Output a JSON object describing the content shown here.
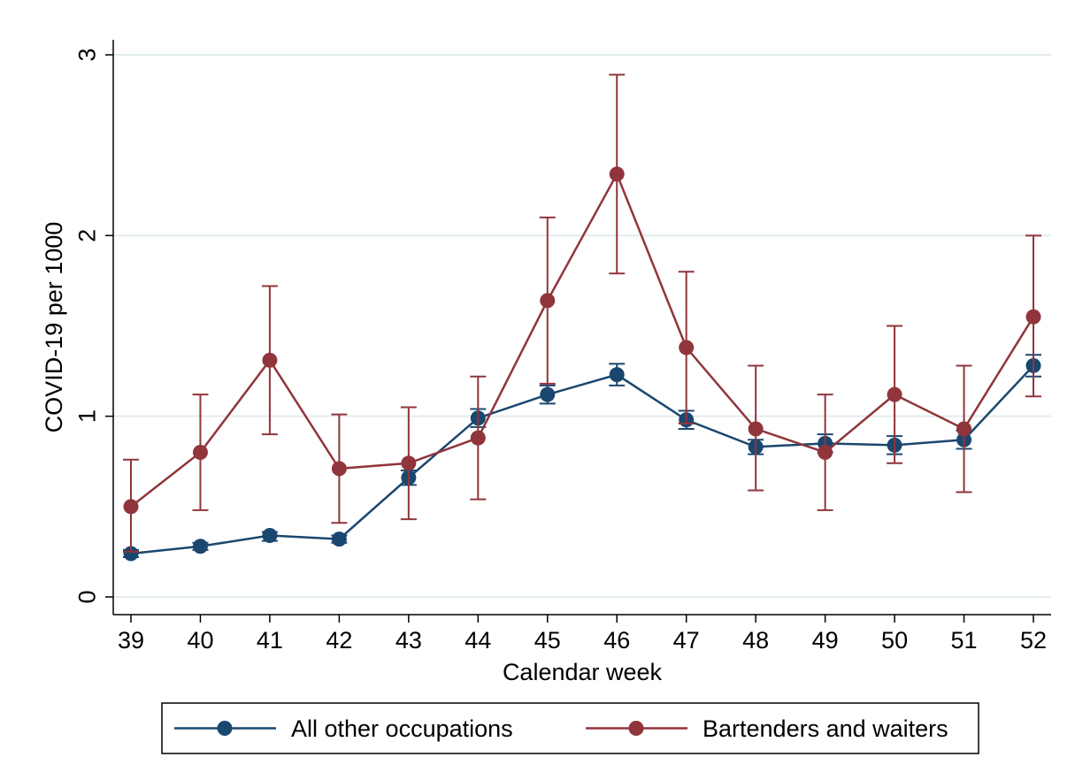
{
  "chart_data": {
    "type": "line",
    "title": "",
    "xlabel": "Calendar week",
    "ylabel": "COVID-19 per 1000",
    "x": [
      39,
      40,
      41,
      42,
      43,
      44,
      45,
      46,
      47,
      48,
      49,
      50,
      51,
      52
    ],
    "xlim": [
      39,
      52
    ],
    "ylim": [
      0,
      3
    ],
    "yticks": [
      0,
      1,
      2,
      3
    ],
    "grid": true,
    "legend_position": "bottom",
    "series": [
      {
        "name": "All other occupations",
        "color": "#1a476f",
        "values": [
          0.24,
          0.28,
          0.34,
          0.32,
          0.66,
          0.99,
          1.12,
          1.23,
          0.98,
          0.83,
          0.85,
          0.84,
          0.87,
          1.28
        ],
        "ci_low": [
          0.22,
          0.26,
          0.31,
          0.3,
          0.62,
          0.94,
          1.07,
          1.17,
          0.93,
          0.79,
          0.8,
          0.79,
          0.82,
          1.22
        ],
        "ci_high": [
          0.26,
          0.3,
          0.36,
          0.34,
          0.7,
          1.04,
          1.17,
          1.29,
          1.03,
          0.87,
          0.9,
          0.89,
          0.92,
          1.34
        ]
      },
      {
        "name": "Bartenders and waiters",
        "color": "#90353b",
        "values": [
          0.5,
          0.8,
          1.31,
          0.71,
          0.74,
          0.88,
          1.64,
          2.34,
          1.38,
          0.93,
          0.8,
          1.12,
          0.93,
          1.55
        ],
        "ci_low": [
          0.25,
          0.48,
          0.9,
          0.41,
          0.43,
          0.54,
          1.18,
          1.79,
          0.96,
          0.59,
          0.48,
          0.74,
          0.58,
          1.11
        ],
        "ci_high": [
          0.76,
          1.12,
          1.72,
          1.01,
          1.05,
          1.22,
          2.1,
          2.89,
          1.8,
          1.28,
          1.12,
          1.5,
          1.28,
          2.0
        ]
      }
    ]
  }
}
